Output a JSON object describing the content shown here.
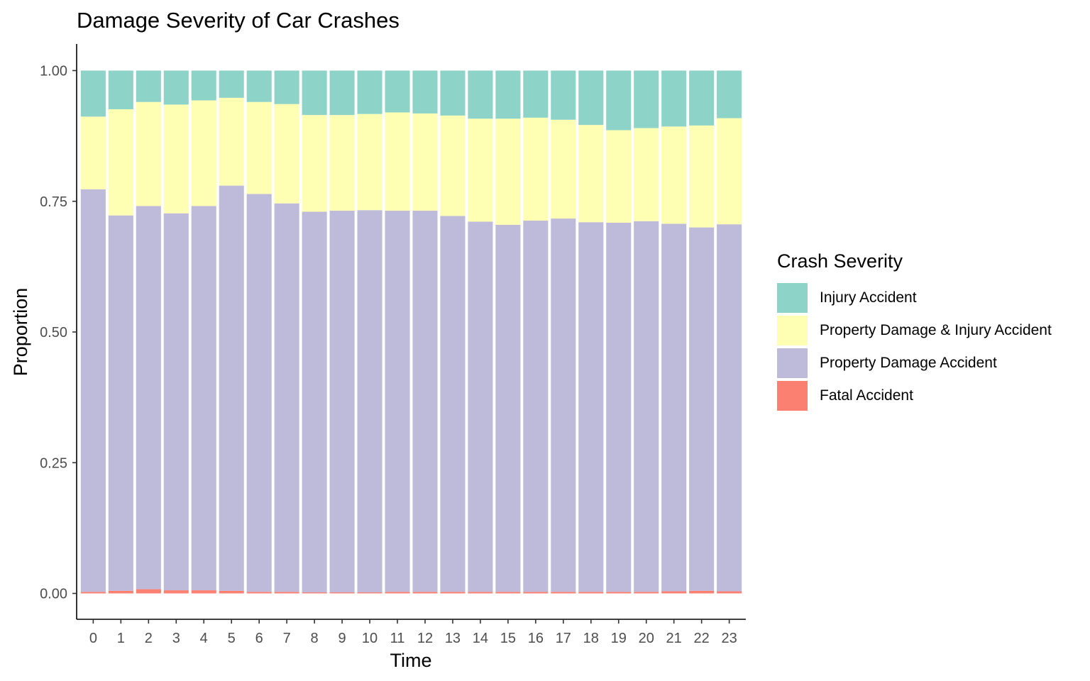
{
  "chart_data": {
    "type": "bar",
    "stacked": true,
    "title": "Damage Severity of Car Crashes",
    "xlabel": "Time",
    "ylabel": "Proportion",
    "ylim": [
      0,
      1
    ],
    "yticks": [
      "0.00",
      "0.25",
      "0.50",
      "0.75",
      "1.00"
    ],
    "grid": false,
    "legend_position": "right",
    "legend_title": "Crash Severity",
    "categories": [
      "0",
      "1",
      "2",
      "3",
      "4",
      "5",
      "6",
      "7",
      "8",
      "9",
      "10",
      "11",
      "12",
      "13",
      "14",
      "15",
      "16",
      "17",
      "18",
      "19",
      "20",
      "21",
      "22",
      "23"
    ],
    "series": [
      {
        "name": "Fatal Accident",
        "color": "#FB8072",
        "values": [
          0.003,
          0.005,
          0.008,
          0.006,
          0.006,
          0.005,
          0.003,
          0.003,
          0.002,
          0.002,
          0.002,
          0.003,
          0.003,
          0.003,
          0.003,
          0.003,
          0.003,
          0.003,
          0.003,
          0.003,
          0.003,
          0.004,
          0.005,
          0.004
        ]
      },
      {
        "name": "Property Damage Accident",
        "color": "#BEBADA",
        "values": [
          0.77,
          0.718,
          0.733,
          0.721,
          0.735,
          0.775,
          0.761,
          0.743,
          0.728,
          0.73,
          0.731,
          0.729,
          0.729,
          0.719,
          0.708,
          0.702,
          0.71,
          0.714,
          0.707,
          0.706,
          0.709,
          0.703,
          0.695,
          0.702
        ]
      },
      {
        "name": "Property Damage & Injury Accident",
        "color": "#FFFFB3",
        "values": [
          0.139,
          0.203,
          0.199,
          0.208,
          0.202,
          0.168,
          0.176,
          0.19,
          0.185,
          0.183,
          0.184,
          0.188,
          0.186,
          0.192,
          0.197,
          0.203,
          0.197,
          0.189,
          0.186,
          0.177,
          0.178,
          0.186,
          0.195,
          0.203
        ]
      },
      {
        "name": "Injury Accident",
        "color": "#8DD3C7",
        "values": [
          0.088,
          0.074,
          0.06,
          0.065,
          0.057,
          0.052,
          0.06,
          0.064,
          0.085,
          0.085,
          0.083,
          0.08,
          0.082,
          0.086,
          0.092,
          0.092,
          0.09,
          0.094,
          0.104,
          0.114,
          0.11,
          0.107,
          0.105,
          0.091
        ]
      }
    ]
  },
  "legend_order": [
    "Injury Accident",
    "Property Damage & Injury Accident",
    "Property Damage Accident",
    "Fatal Accident"
  ],
  "colors": {
    "axis": "#333333",
    "tick_label": "#4D4D4D",
    "text": "#000000",
    "background": "#FFFFFF"
  }
}
